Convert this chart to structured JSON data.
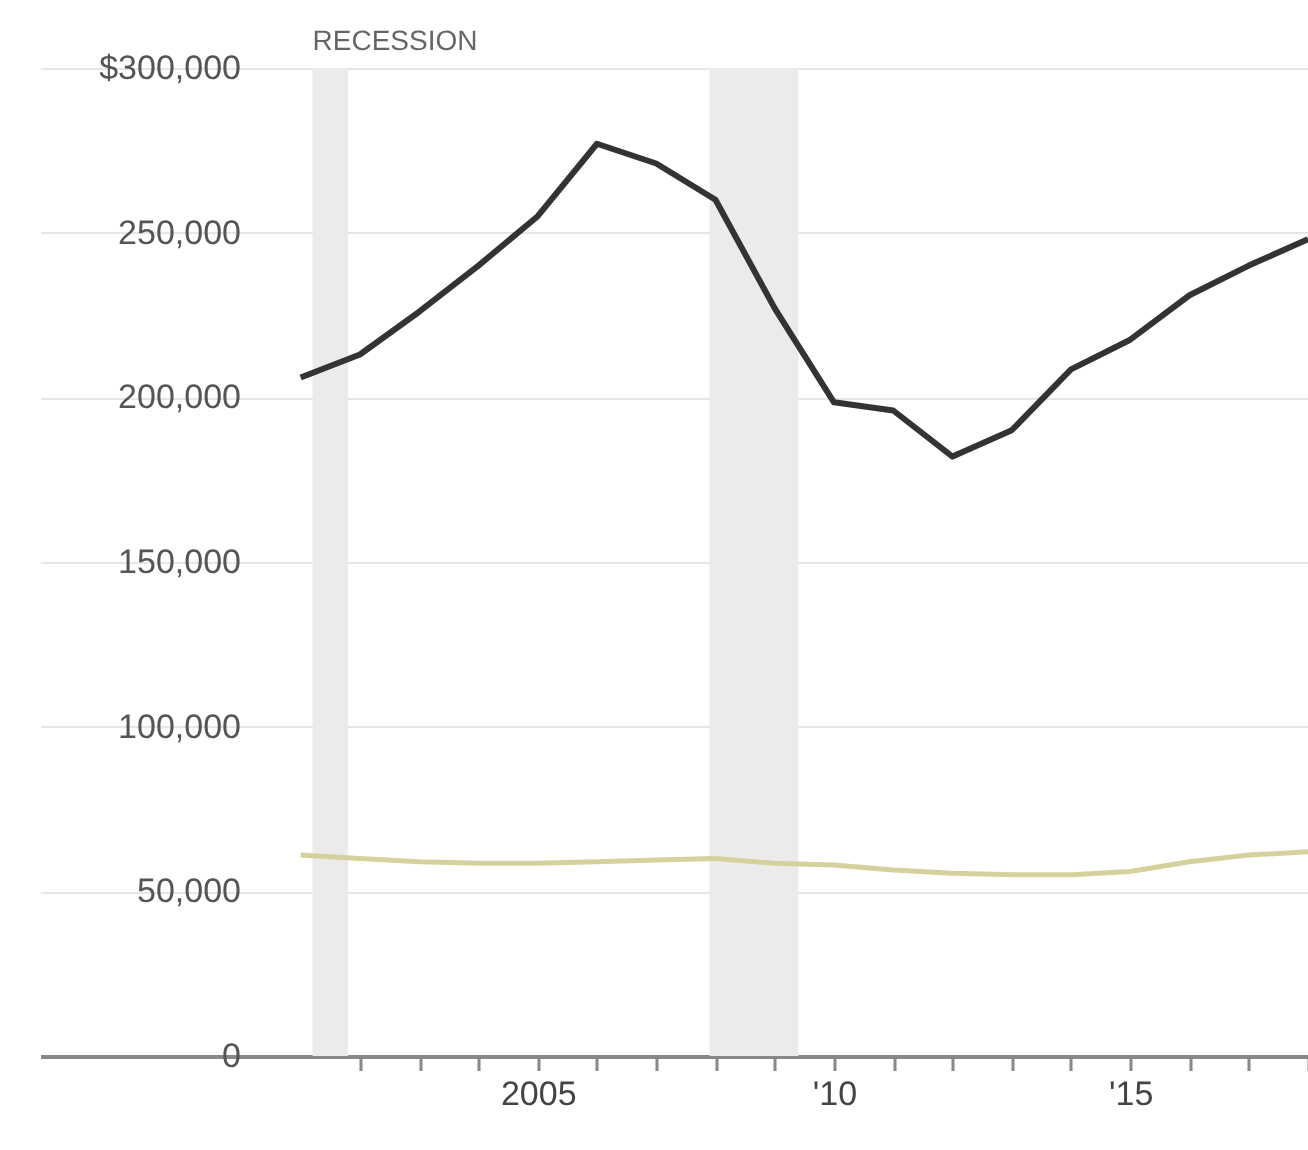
{
  "chart_data": {
    "type": "line",
    "x": [
      2001,
      2002,
      2003,
      2004,
      2005,
      2006,
      2007,
      2008,
      2009,
      2010,
      2011,
      2012,
      2013,
      2014,
      2015,
      2016,
      2017,
      2018
    ],
    "series": [
      {
        "color": "#333333",
        "values": [
          206000,
          213000,
          226000,
          240000,
          255000,
          277000,
          271000,
          260000,
          227000,
          198500,
          196000,
          182000,
          190000,
          208500,
          217500,
          231000,
          240000,
          248000
        ]
      },
      {
        "color": "#d6d19c",
        "values": [
          61000,
          60000,
          59000,
          58500,
          58500,
          59000,
          59500,
          60000,
          58500,
          58000,
          56500,
          55500,
          55000,
          55000,
          56000,
          59000,
          61000,
          62000
        ]
      }
    ],
    "xlim": [
      1996.6,
      2018
    ],
    "xticks": [
      {
        "value": 2002,
        "label": null
      },
      {
        "value": 2003,
        "label": null
      },
      {
        "value": 2004,
        "label": null
      },
      2005,
      {
        "value": 2006,
        "label": null
      },
      {
        "value": 2007,
        "label": null
      },
      {
        "value": 2008,
        "label": null
      },
      {
        "value": 2009,
        "label": null
      },
      {
        "value": 2010,
        "label": "'10"
      },
      {
        "value": 2011,
        "label": null
      },
      {
        "value": 2012,
        "label": null
      },
      {
        "value": 2013,
        "label": null
      },
      {
        "value": 2014,
        "label": null
      },
      {
        "value": 2015,
        "label": "'15"
      },
      {
        "value": 2016,
        "label": null
      },
      {
        "value": 2017,
        "label": null
      },
      {
        "value": 2018,
        "label": null
      }
    ],
    "ylim": [
      0,
      300000
    ],
    "yticks": [
      0,
      {
        "value": 50000,
        "label": "50,000"
      },
      {
        "value": 100000,
        "label": "100,000"
      },
      {
        "value": 150000,
        "label": "150,000"
      },
      {
        "value": 200000,
        "label": "200,000"
      },
      {
        "value": 250000,
        "label": "250,000"
      },
      {
        "value": 300000,
        "label": "$300,000"
      }
    ],
    "grid": "y",
    "bands": [
      {
        "axis": "x",
        "from": 2001.2,
        "to": 2001.8,
        "label": "RECESSION",
        "color": "#ebebeb"
      },
      {
        "axis": "x",
        "from": 2007.9,
        "to": 2009.4,
        "color": "#ebebeb"
      }
    ]
  }
}
